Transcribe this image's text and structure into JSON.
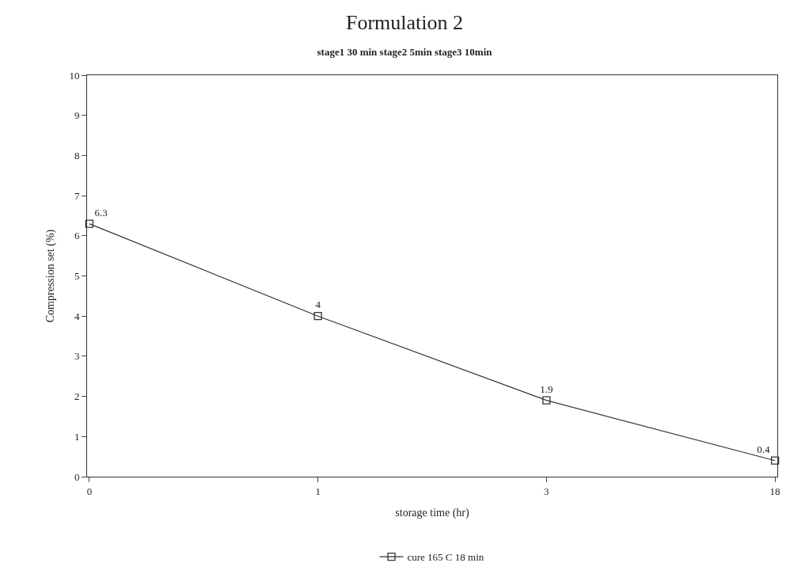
{
  "chart_data": {
    "type": "line",
    "title": "Formulation 2",
    "subtitle": "stage1 30 min stage2 5min stage3 10min",
    "xlabel": "storage time (hr)",
    "ylabel": "Compression set (%)",
    "categories": [
      "0",
      "1",
      "3",
      "18"
    ],
    "series": [
      {
        "name": "cure 165 C 18 min",
        "color": "#333333",
        "values": [
          6.3,
          4,
          1.9,
          0.4
        ]
      }
    ],
    "ylim": [
      0,
      10
    ],
    "yticks": [
      0,
      1,
      2,
      3,
      4,
      5,
      6,
      7,
      8,
      9,
      10
    ],
    "data_labels": true,
    "marker": "square",
    "line_style": "solid",
    "legend": "bottom"
  }
}
